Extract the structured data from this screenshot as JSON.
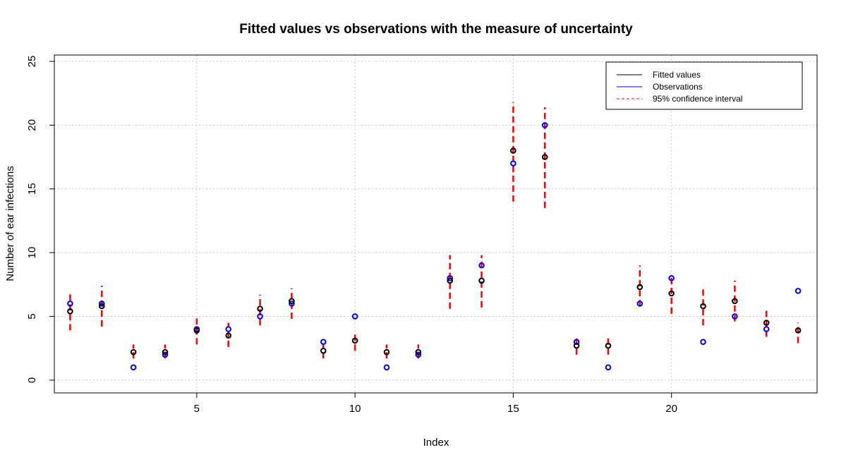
{
  "chart_data": {
    "type": "scatter",
    "title": "Fitted values vs observations with the measure of uncertainty",
    "xlabel": "Index",
    "ylabel": "Number of ear infections",
    "xlim": [
      0.5,
      24.6
    ],
    "ylim": [
      -1,
      25.5
    ],
    "x_ticks": [
      5,
      10,
      15,
      20
    ],
    "y_ticks": [
      0,
      5,
      10,
      15,
      20,
      25
    ],
    "grid": true,
    "legend_position": "top-right",
    "legend": [
      {
        "label": "Fitted values",
        "style": "solid",
        "color": "#000000"
      },
      {
        "label": "Observations",
        "style": "solid",
        "color": "#0000ff"
      },
      {
        "label": "95% confidence interval",
        "style": "dashed",
        "color": "#ff0000"
      }
    ],
    "x": [
      1,
      2,
      3,
      4,
      5,
      6,
      7,
      8,
      9,
      10,
      11,
      12,
      13,
      14,
      15,
      16,
      17,
      18,
      19,
      20,
      21,
      22,
      23,
      24
    ],
    "series": [
      {
        "name": "Fitted values",
        "color": "#000000",
        "values": [
          5.4,
          5.8,
          2.2,
          2.2,
          3.9,
          3.5,
          5.6,
          6.2,
          2.3,
          3.1,
          2.2,
          2.2,
          7.8,
          7.8,
          18.0,
          17.5,
          2.7,
          2.7,
          7.3,
          6.8,
          5.8,
          6.2,
          4.5,
          3.9
        ]
      },
      {
        "name": "Observations",
        "color": "#0000ff",
        "values": [
          6,
          6,
          1,
          2,
          4,
          4,
          5,
          6,
          3,
          5,
          1,
          2,
          8,
          9,
          17,
          20,
          3,
          1,
          6,
          8,
          3,
          5,
          4,
          7
        ]
      },
      {
        "name": "95% confidence interval",
        "color": "#ff0000",
        "lower": [
          3.9,
          4.2,
          1.7,
          1.7,
          2.8,
          2.6,
          4.3,
          4.8,
          1.7,
          2.3,
          1.7,
          1.7,
          5.6,
          5.7,
          14.0,
          13.5,
          2.0,
          2.0,
          5.8,
          5.2,
          4.3,
          4.6,
          3.4,
          2.9
        ],
        "upper": [
          6.8,
          7.4,
          2.8,
          2.8,
          4.9,
          4.5,
          6.7,
          7.2,
          2.9,
          3.7,
          2.8,
          2.8,
          9.8,
          9.8,
          21.8,
          21.4,
          3.4,
          3.4,
          9.0,
          8.2,
          7.4,
          7.8,
          5.6,
          4.5
        ]
      }
    ]
  }
}
